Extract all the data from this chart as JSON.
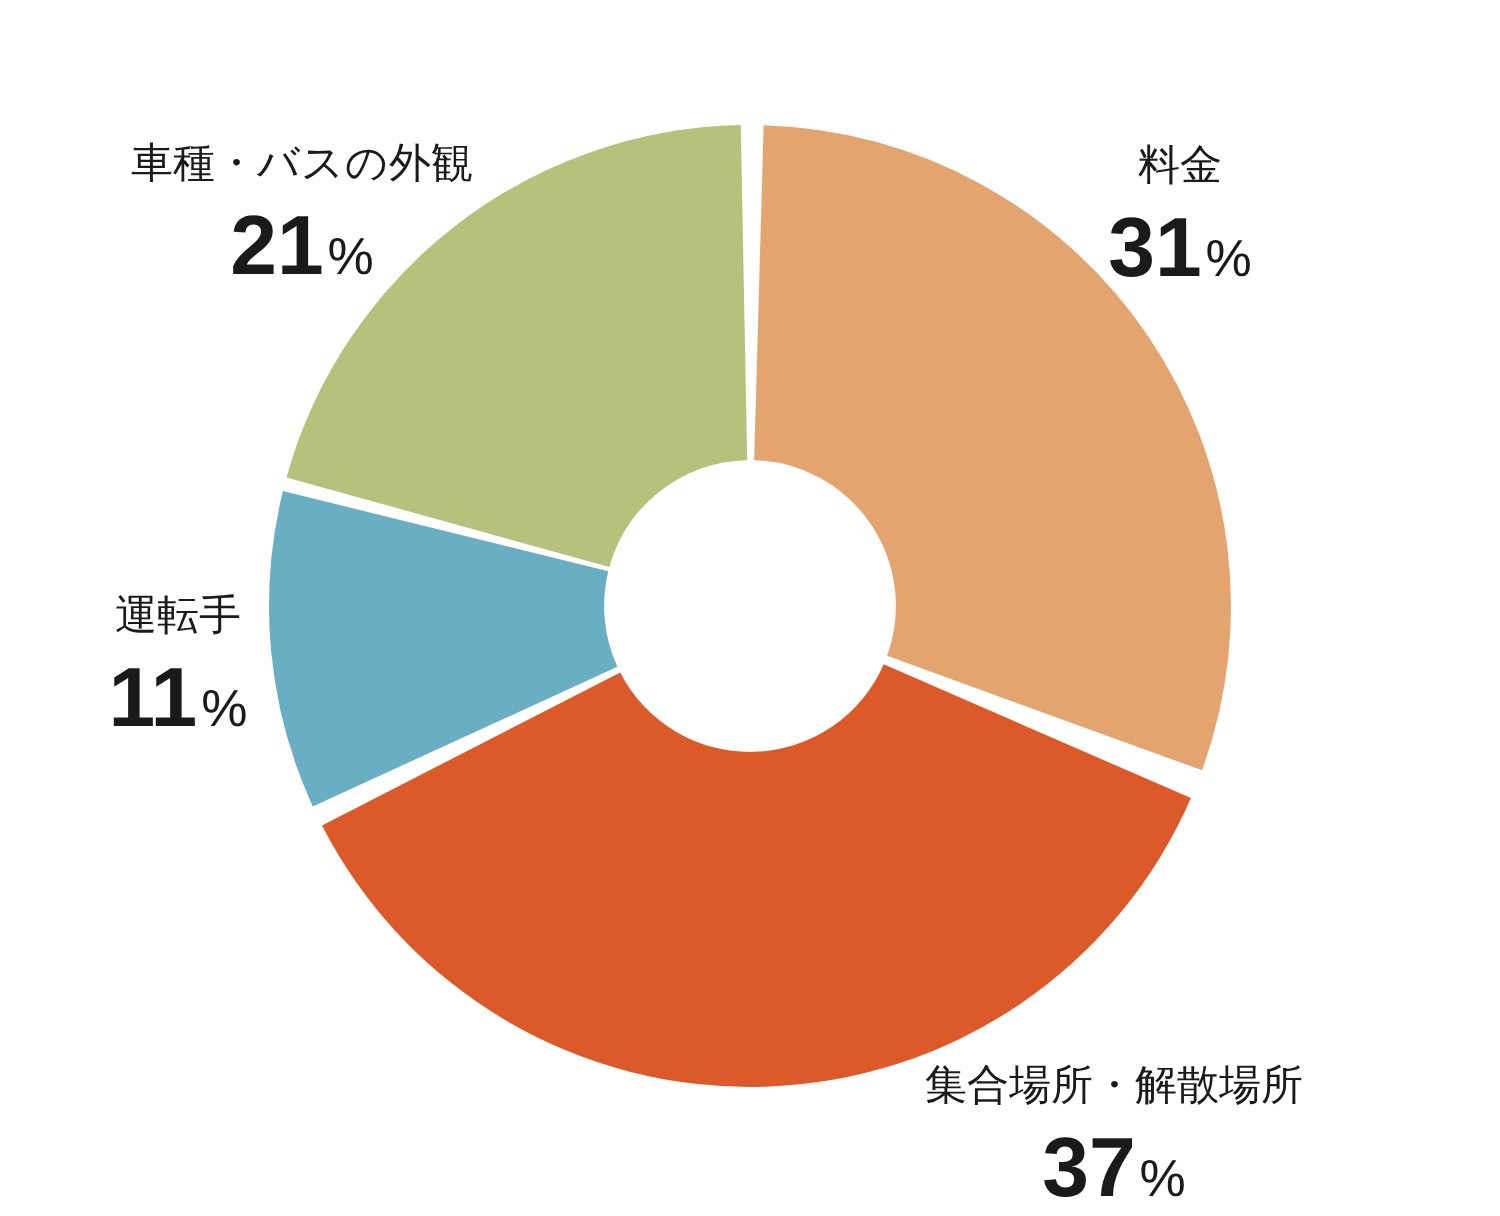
{
  "chart_data": {
    "type": "donut",
    "categories": [
      "料金",
      "集合場所・解散場所",
      "運転手",
      "車種・バスの外観"
    ],
    "values": [
      31,
      37,
      11,
      21
    ],
    "colors": [
      "#e4a46f",
      "#dc5a2a",
      "#6aaec3",
      "#b5c27c"
    ],
    "value_labels": [
      "31%",
      "37%",
      "11%",
      "21%"
    ]
  }
}
